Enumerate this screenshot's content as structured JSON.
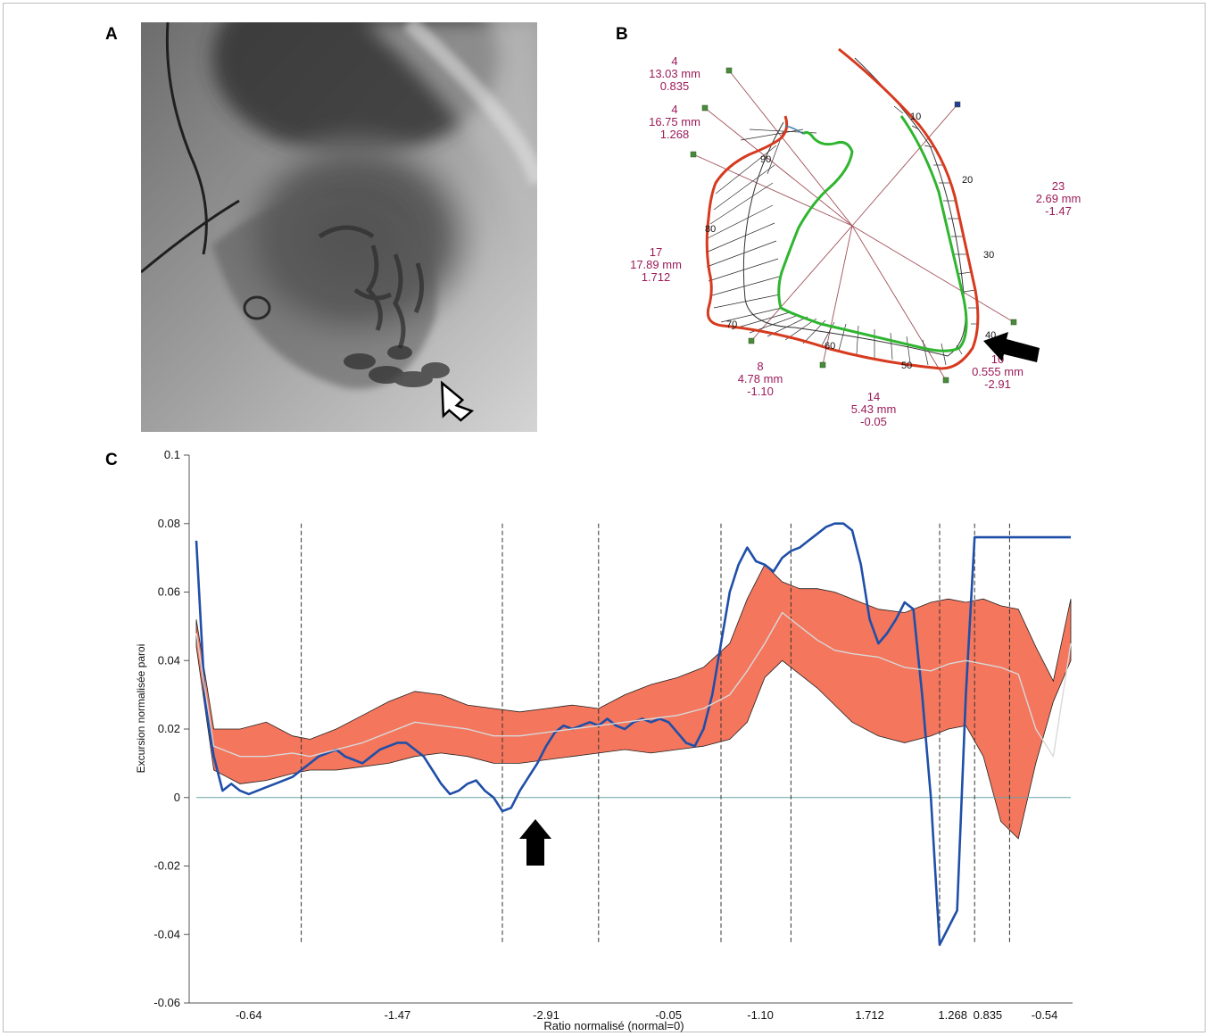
{
  "panels": {
    "a": "A",
    "b": "B",
    "c": "C"
  },
  "panel_b": {
    "tick_labels": [
      "10",
      "20",
      "30",
      "40",
      "50",
      "60",
      "70",
      "80",
      "90"
    ],
    "segments": [
      {
        "count": "4",
        "mm": "13.03 mm",
        "ratio": "0.835"
      },
      {
        "count": "4",
        "mm": "16.75 mm",
        "ratio": "1.268"
      },
      {
        "count": "17",
        "mm": "17.89 mm",
        "ratio": "1.712"
      },
      {
        "count": "8",
        "mm": "4.78 mm",
        "ratio": "-1.10"
      },
      {
        "count": "14",
        "mm": "5.43  mm",
        "ratio": "-0.05"
      },
      {
        "count": "10",
        "mm": "0.555 mm",
        "ratio": "-2.91"
      },
      {
        "count": "23",
        "mm": "2.69  mm",
        "ratio": "-1.47"
      }
    ],
    "colors": {
      "outer_contour": "#d63a1f",
      "inner_contour": "#2fb52f",
      "radial_lines": "#a0505a",
      "chord_lines": "#4a7aa8",
      "labels": "#9b1b5a"
    }
  },
  "chart_data": {
    "type": "line",
    "ylabel": "Excursion normalisée paroi",
    "xlabel": "Ratio normalisé (normal=0)",
    "yticks": [
      "0.1",
      "0.08",
      "0.06",
      "0.04",
      "0.02",
      "0",
      "-0.02",
      "-0.04",
      "-0.06"
    ],
    "xticks": [
      "-0.64",
      "-1.47",
      "-2.91",
      "-0.05",
      "-1.10",
      "1.712",
      "1.268",
      "0.835",
      "-0.54"
    ],
    "ylim": [
      -0.06,
      0.1
    ],
    "xlim": [
      0,
      100
    ],
    "segment_boundaries": [
      12,
      35,
      46,
      60,
      68,
      85,
      89,
      93
    ],
    "series": [
      {
        "color": "#1f4fa8",
        "x": [
          0,
          1,
          2,
          3,
          4,
          5,
          6,
          7,
          8,
          9,
          10,
          11,
          12,
          13,
          14,
          15,
          16,
          17,
          18,
          19,
          20,
          21,
          22,
          23,
          24,
          25,
          26,
          27,
          28,
          29,
          30,
          31,
          32,
          33,
          34,
          35,
          36,
          37,
          38,
          39,
          40,
          41,
          42,
          43,
          44,
          45,
          46,
          47,
          48,
          49,
          50,
          51,
          52,
          53,
          54,
          55,
          56,
          57,
          58,
          59,
          60,
          61,
          62,
          63,
          64,
          65,
          66,
          67,
          68,
          69,
          70,
          71,
          72,
          73,
          74,
          75,
          76,
          77,
          78,
          79,
          80,
          81,
          82,
          83,
          84,
          85,
          86,
          87,
          88,
          89,
          90,
          91,
          92,
          93,
          94,
          95,
          96,
          97,
          98,
          99,
          100
        ],
        "values": [
          0.075,
          0.028,
          0.012,
          0.002,
          0.004,
          0.002,
          0.001,
          0.002,
          0.003,
          0.004,
          0.005,
          0.006,
          0.008,
          0.01,
          0.012,
          0.013,
          0.014,
          0.012,
          0.011,
          0.01,
          0.012,
          0.014,
          0.015,
          0.016,
          0.016,
          0.014,
          0.012,
          0.008,
          0.004,
          0.001,
          0.002,
          0.004,
          0.005,
          0.002,
          0.0,
          -0.004,
          -0.003,
          0.002,
          0.006,
          0.01,
          0.015,
          0.019,
          0.021,
          0.02,
          0.021,
          0.022,
          0.021,
          0.023,
          0.021,
          0.02,
          0.022,
          0.023,
          0.022,
          0.023,
          0.022,
          0.019,
          0.016,
          0.015,
          0.02,
          0.03,
          0.045,
          0.06,
          0.068,
          0.073,
          0.069,
          0.068,
          0.066,
          0.07,
          0.072,
          0.073,
          0.075,
          0.077,
          0.079,
          0.08,
          0.08,
          0.078,
          0.068,
          0.052,
          0.045,
          0.048,
          0.052,
          0.057,
          0.055,
          0.03,
          0.0,
          -0.043,
          -0.038,
          -0.033,
          0.03,
          0.076,
          0.076,
          0.076,
          0.076,
          0.076,
          0.076,
          0.076,
          0.076,
          0.076,
          0.076,
          0.076,
          0.076
        ]
      },
      {
        "color": "#d9d9d9",
        "x": [
          0,
          2,
          5,
          8,
          11,
          13,
          16,
          19,
          22,
          25,
          28,
          31,
          34,
          37,
          40,
          43,
          46,
          49,
          52,
          55,
          58,
          61,
          63,
          65,
          67,
          69,
          71,
          73,
          75,
          78,
          81,
          84,
          86,
          88,
          90,
          92,
          94,
          96,
          98,
          100
        ],
        "values": [
          0.048,
          0.015,
          0.012,
          0.012,
          0.013,
          0.012,
          0.014,
          0.016,
          0.019,
          0.022,
          0.021,
          0.02,
          0.018,
          0.018,
          0.019,
          0.02,
          0.021,
          0.022,
          0.023,
          0.024,
          0.026,
          0.03,
          0.037,
          0.045,
          0.054,
          0.05,
          0.046,
          0.043,
          0.042,
          0.041,
          0.038,
          0.037,
          0.039,
          0.04,
          0.039,
          0.038,
          0.036,
          0.02,
          0.012,
          0.045
        ]
      }
    ],
    "band": {
      "color": "#f26a4f",
      "x": [
        0,
        2,
        5,
        8,
        11,
        13,
        16,
        19,
        22,
        25,
        28,
        31,
        34,
        37,
        40,
        43,
        46,
        49,
        52,
        55,
        58,
        61,
        63,
        65,
        67,
        69,
        71,
        73,
        75,
        78,
        81,
        84,
        86,
        88,
        90,
        92,
        94,
        96,
        98,
        100
      ],
      "upper": [
        0.052,
        0.02,
        0.02,
        0.022,
        0.018,
        0.017,
        0.02,
        0.024,
        0.028,
        0.031,
        0.03,
        0.027,
        0.026,
        0.025,
        0.026,
        0.027,
        0.026,
        0.03,
        0.033,
        0.035,
        0.038,
        0.045,
        0.058,
        0.068,
        0.063,
        0.061,
        0.061,
        0.06,
        0.058,
        0.055,
        0.054,
        0.057,
        0.058,
        0.057,
        0.058,
        0.056,
        0.055,
        0.044,
        0.034,
        0.058
      ],
      "lower": [
        0.044,
        0.008,
        0.004,
        0.005,
        0.007,
        0.008,
        0.008,
        0.009,
        0.01,
        0.012,
        0.013,
        0.012,
        0.01,
        0.01,
        0.011,
        0.012,
        0.013,
        0.014,
        0.013,
        0.014,
        0.015,
        0.017,
        0.022,
        0.035,
        0.04,
        0.036,
        0.032,
        0.027,
        0.022,
        0.018,
        0.016,
        0.018,
        0.02,
        0.021,
        0.012,
        -0.007,
        -0.012,
        0.01,
        0.028,
        0.04
      ]
    }
  }
}
